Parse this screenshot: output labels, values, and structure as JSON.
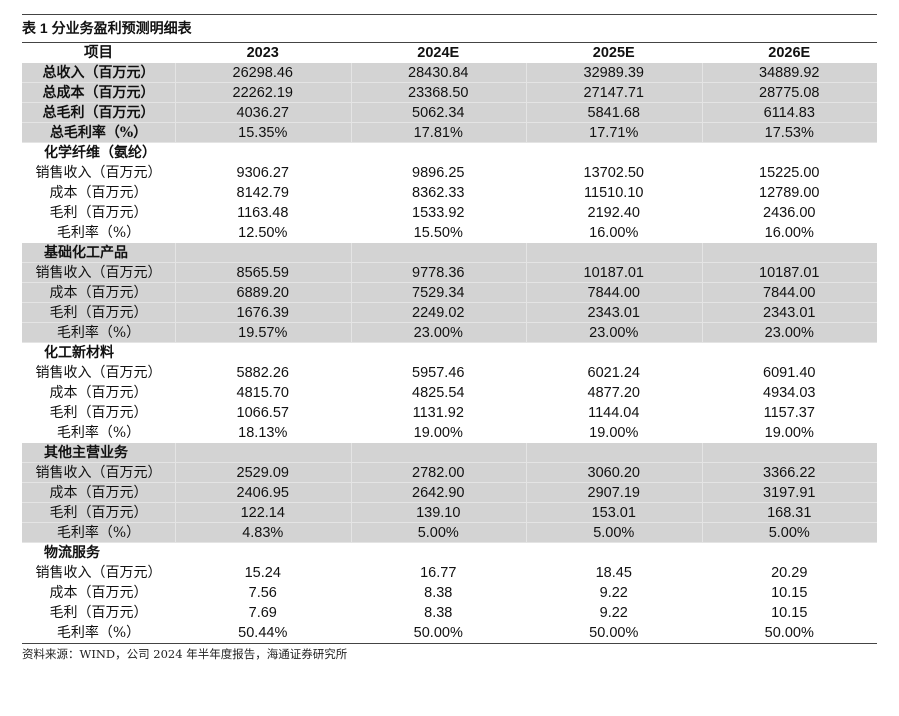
{
  "title": "表 1 分业务盈利预测明细表",
  "headers": [
    "项目",
    "2023",
    "2024E",
    "2025E",
    "2026E"
  ],
  "summary": [
    {
      "label": "总收入（百万元）",
      "values": [
        "26298.46",
        "28430.84",
        "32989.39",
        "34889.92"
      ]
    },
    {
      "label": "总成本（百万元）",
      "values": [
        "22262.19",
        "23368.50",
        "27147.71",
        "28775.08"
      ]
    },
    {
      "label": "总毛利（百万元）",
      "values": [
        "4036.27",
        "5062.34",
        "5841.68",
        "6114.83"
      ]
    },
    {
      "label": "总毛利率（%）",
      "values": [
        "15.35%",
        "17.81%",
        "17.71%",
        "17.53%"
      ]
    }
  ],
  "sections": [
    {
      "name": "化学纤维（氨纶）",
      "shaded": false,
      "rows": [
        {
          "label": "销售收入（百万元）",
          "values": [
            "9306.27",
            "9896.25",
            "13702.50",
            "15225.00"
          ]
        },
        {
          "label": "成本（百万元）",
          "values": [
            "8142.79",
            "8362.33",
            "11510.10",
            "12789.00"
          ]
        },
        {
          "label": "毛利（百万元）",
          "values": [
            "1163.48",
            "1533.92",
            "2192.40",
            "2436.00"
          ]
        },
        {
          "label": "毛利率（%）",
          "values": [
            "12.50%",
            "15.50%",
            "16.00%",
            "16.00%"
          ]
        }
      ]
    },
    {
      "name": "基础化工产品",
      "shaded": true,
      "rows": [
        {
          "label": "销售收入（百万元）",
          "values": [
            "8565.59",
            "9778.36",
            "10187.01",
            "10187.01"
          ]
        },
        {
          "label": "成本（百万元）",
          "values": [
            "6889.20",
            "7529.34",
            "7844.00",
            "7844.00"
          ]
        },
        {
          "label": "毛利（百万元）",
          "values": [
            "1676.39",
            "2249.02",
            "2343.01",
            "2343.01"
          ]
        },
        {
          "label": "毛利率（%）",
          "values": [
            "19.57%",
            "23.00%",
            "23.00%",
            "23.00%"
          ]
        }
      ]
    },
    {
      "name": "化工新材料",
      "shaded": false,
      "rows": [
        {
          "label": "销售收入（百万元）",
          "values": [
            "5882.26",
            "5957.46",
            "6021.24",
            "6091.40"
          ]
        },
        {
          "label": "成本（百万元）",
          "values": [
            "4815.70",
            "4825.54",
            "4877.20",
            "4934.03"
          ]
        },
        {
          "label": "毛利（百万元）",
          "values": [
            "1066.57",
            "1131.92",
            "1144.04",
            "1157.37"
          ]
        },
        {
          "label": "毛利率（%）",
          "values": [
            "18.13%",
            "19.00%",
            "19.00%",
            "19.00%"
          ]
        }
      ]
    },
    {
      "name": "其他主营业务",
      "shaded": true,
      "rows": [
        {
          "label": "销售收入（百万元）",
          "values": [
            "2529.09",
            "2782.00",
            "3060.20",
            "3366.22"
          ]
        },
        {
          "label": "成本（百万元）",
          "values": [
            "2406.95",
            "2642.90",
            "2907.19",
            "3197.91"
          ]
        },
        {
          "label": "毛利（百万元）",
          "values": [
            "122.14",
            "139.10",
            "153.01",
            "168.31"
          ]
        },
        {
          "label": "毛利率（%）",
          "values": [
            "4.83%",
            "5.00%",
            "5.00%",
            "5.00%"
          ]
        }
      ]
    },
    {
      "name": "物流服务",
      "shaded": false,
      "rows": [
        {
          "label": "销售收入（百万元）",
          "values": [
            "15.24",
            "16.77",
            "18.45",
            "20.29"
          ]
        },
        {
          "label": "成本（百万元）",
          "values": [
            "7.56",
            "8.38",
            "9.22",
            "10.15"
          ]
        },
        {
          "label": "毛利（百万元）",
          "values": [
            "7.69",
            "8.38",
            "9.22",
            "10.15"
          ]
        },
        {
          "label": "毛利率（%）",
          "values": [
            "50.44%",
            "50.00%",
            "50.00%",
            "50.00%"
          ]
        }
      ]
    }
  ],
  "source": "资料来源：WIND，公司 2024 年半年度报告，海通证券研究所"
}
